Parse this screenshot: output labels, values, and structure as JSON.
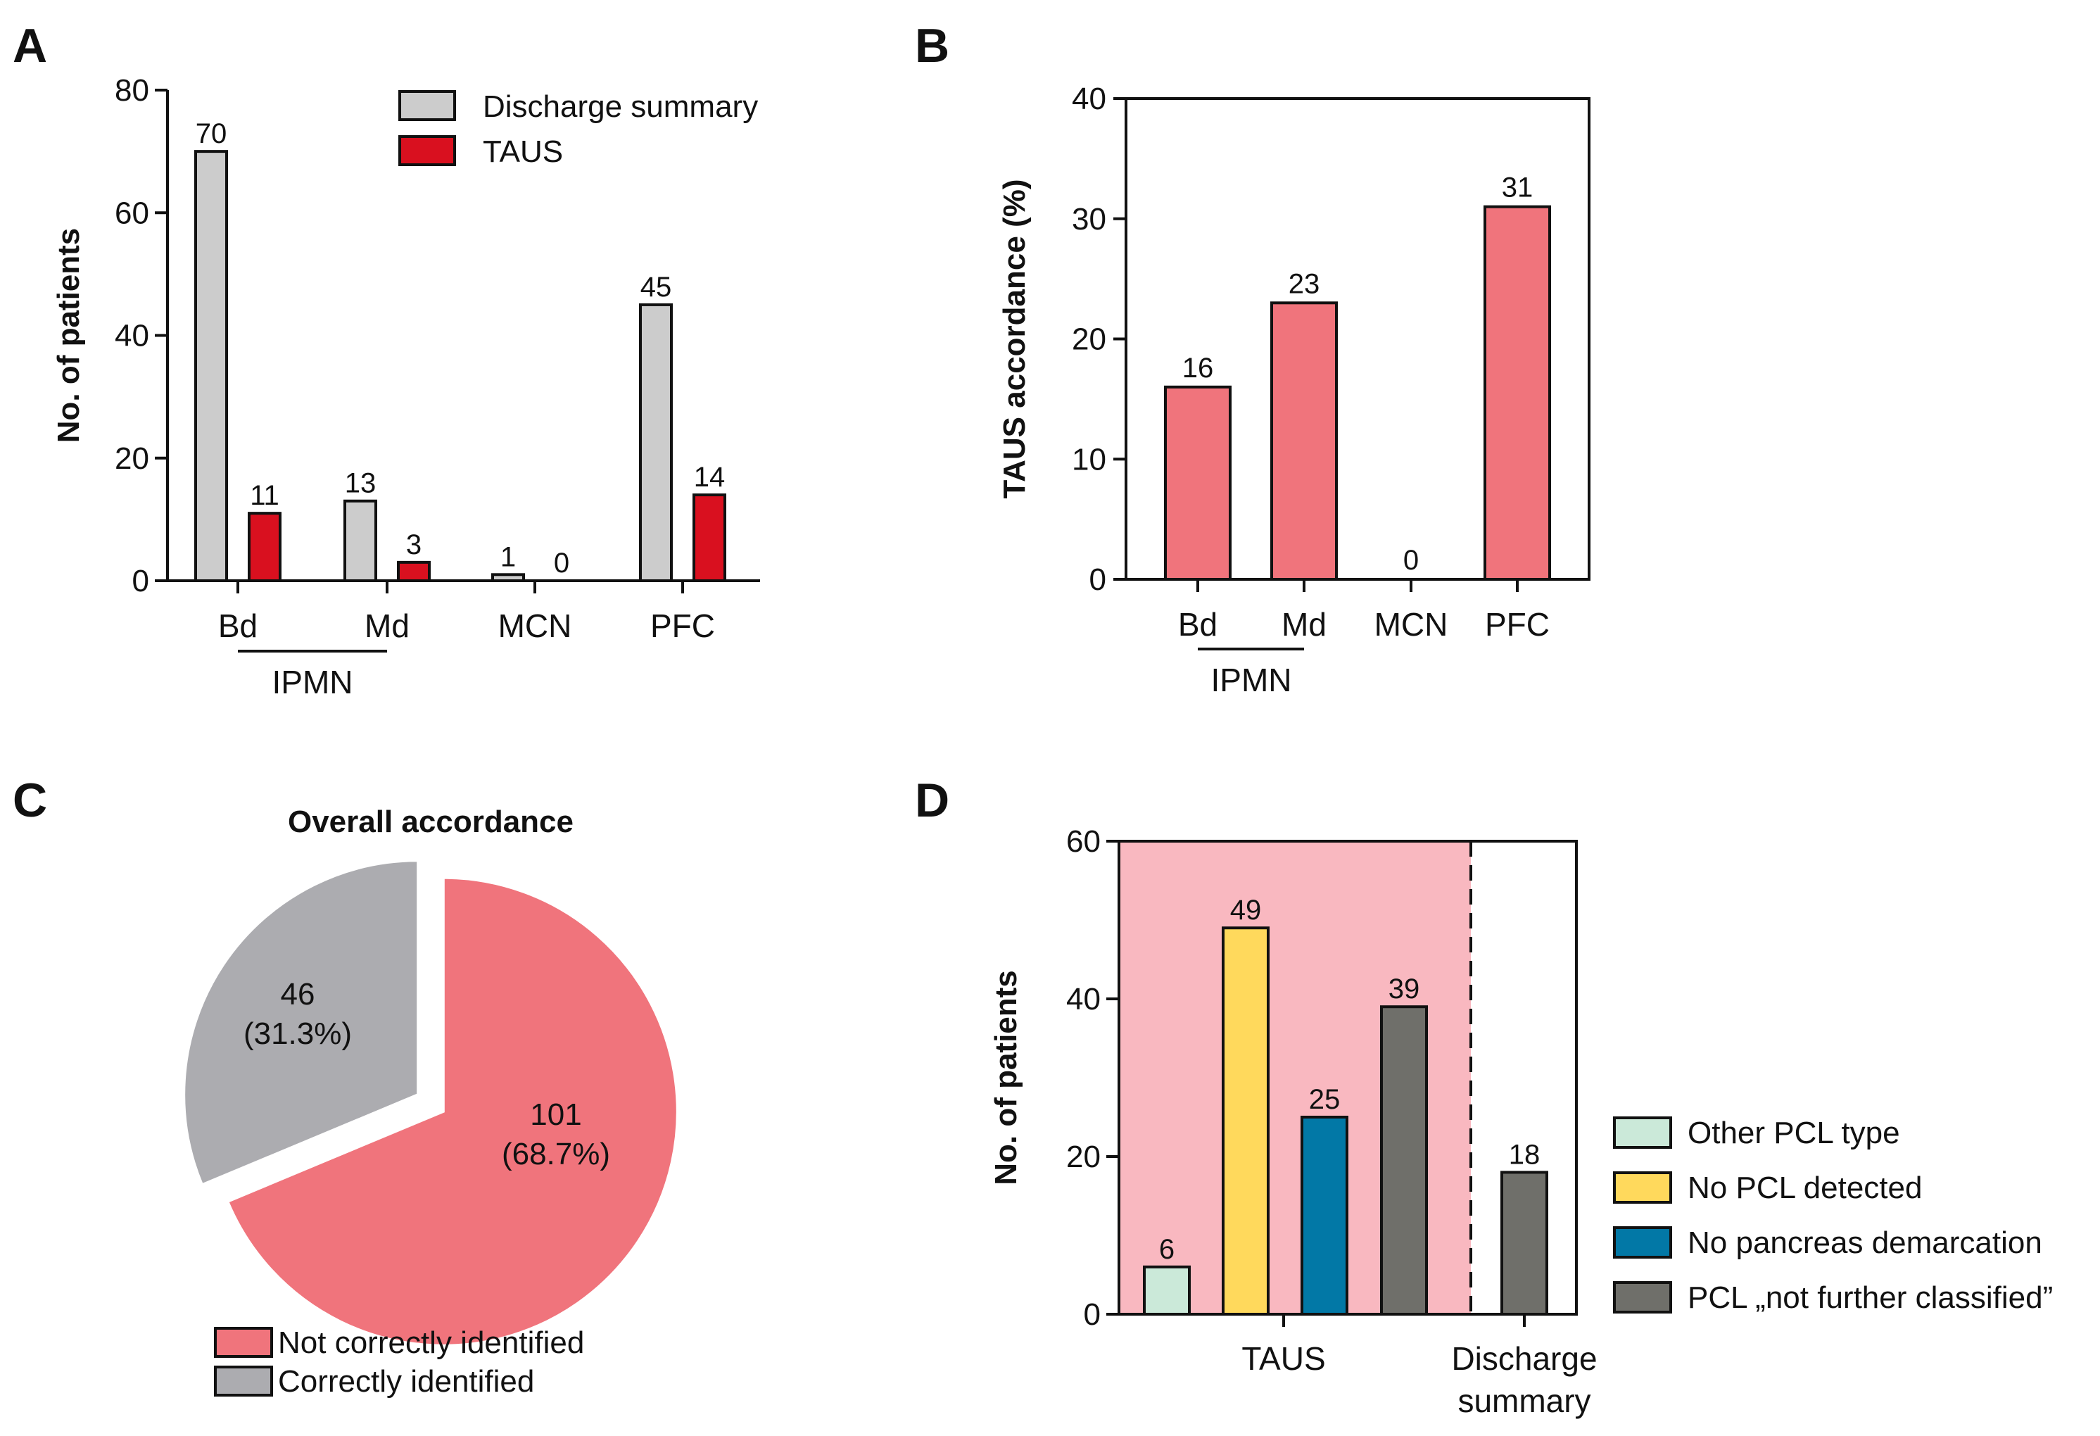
{
  "panels": {
    "a": "A",
    "b": "B",
    "c": "C",
    "d": "D"
  },
  "chart_data": [
    {
      "id": "A",
      "type": "bar",
      "ylabel": "No. of patients",
      "ylim": [
        0,
        80
      ],
      "yticks": [
        0,
        20,
        40,
        60,
        80
      ],
      "categories": [
        "Bd",
        "Md",
        "MCN",
        "PFC"
      ],
      "group_label": "IPMN",
      "legend_position": "top-right",
      "series": [
        {
          "name": "Discharge summary",
          "color": "#cccccc",
          "values": [
            70,
            13,
            1,
            45
          ]
        },
        {
          "name": "TAUS",
          "color": "#d9101f",
          "values": [
            11,
            3,
            0,
            14
          ]
        }
      ]
    },
    {
      "id": "B",
      "type": "bar",
      "ylabel": "TAUS accordance (%)",
      "ylim": [
        0,
        40
      ],
      "yticks": [
        0,
        10,
        20,
        30,
        40
      ],
      "categories": [
        "Bd",
        "Md",
        "MCN",
        "PFC"
      ],
      "group_label": "IPMN",
      "color": "#f0747c",
      "values": [
        16,
        23,
        0,
        31
      ]
    },
    {
      "id": "C",
      "type": "pie",
      "title": "Overall accordance",
      "slices": [
        {
          "name": "Not correctly identified",
          "value": 101,
          "label": "101",
          "pct": "(68.7%)",
          "color": "#f0747c"
        },
        {
          "name": "Correctly identified",
          "value": 46,
          "label": "46",
          "pct": "(31.3%)",
          "color": "#acacb0"
        }
      ]
    },
    {
      "id": "D",
      "type": "bar",
      "ylabel": "No. of patients",
      "ylim": [
        0,
        60
      ],
      "yticks": [
        0,
        20,
        40,
        60
      ],
      "groups": [
        "TAUS",
        "Discharge summary"
      ],
      "group_lines": [
        [
          "TAUS"
        ],
        [
          "Discharge",
          "summary"
        ]
      ],
      "shaded_group": "TAUS",
      "shade_color": "#f9b8c0",
      "legend_position": "right",
      "bars": [
        {
          "group": "TAUS",
          "name": "Other PCL type",
          "value": 6,
          "color": "#cbe9d9"
        },
        {
          "group": "TAUS",
          "name": "No PCL detected",
          "value": 49,
          "color": "#ffd95c"
        },
        {
          "group": "TAUS",
          "name": "No pancreas demarcation",
          "value": 25,
          "color": "#0278a6"
        },
        {
          "group": "TAUS",
          "name": "PCL „not further classified”",
          "value": 39,
          "color": "#6f6f6a"
        },
        {
          "group": "Discharge summary",
          "name": "PCL „not further classified”",
          "value": 18,
          "color": "#6f6f6a"
        }
      ],
      "legend": [
        {
          "name": "Other PCL type",
          "color": "#cbe9d9"
        },
        {
          "name": "No PCL detected",
          "color": "#ffd95c"
        },
        {
          "name": "No pancreas demarcation",
          "color": "#0278a6"
        },
        {
          "name": "PCL „not further classified”",
          "color": "#6f6f6a"
        }
      ]
    }
  ]
}
